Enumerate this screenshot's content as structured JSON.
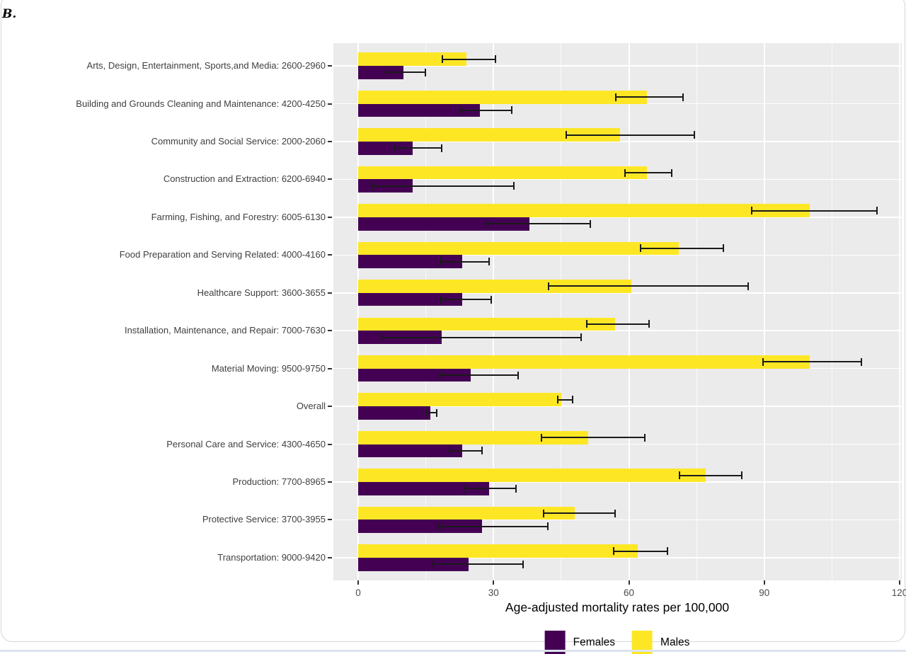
{
  "chart_data": {
    "type": "bar",
    "orientation": "horizontal",
    "title": "B.",
    "xlabel": "Age-adjusted mortality rates per 100,000",
    "x_ticks": [
      0,
      30,
      60,
      90,
      120
    ],
    "x_minor_ticks": [
      15,
      45,
      75,
      105
    ],
    "axis_range": [
      -5.5,
      120.5
    ],
    "panel_bg": "#EBEBEB",
    "grid": "on",
    "error_bar_color": "#1a1a1a",
    "legend_position": "bottom",
    "categories": [
      "Arts, Design, Entertainment, Sports,and Media: 2600-2960",
      "Building and Grounds Cleaning and Maintenance: 4200-4250",
      "Community and Social Service: 2000-2060",
      "Construction and Extraction: 6200-6940",
      "Farming, Fishing, and Forestry: 6005-6130",
      "Food Preparation and Serving Related: 4000-4160",
      "Healthcare Support: 3600-3655",
      "Installation, Maintenance, and Repair: 7000-7630",
      "Material Moving: 9500-9750",
      "Overall",
      "Personal Care and Service: 4300-4650",
      "Production: 7700-8965",
      "Protective Service: 3700-3955",
      "Transportation: 9000-9420"
    ],
    "series": [
      {
        "name": "Males",
        "color": "#FDE725",
        "values": [
          24,
          64,
          58,
          64,
          100,
          71,
          60.5,
          57,
          100,
          45,
          51,
          77,
          48,
          62
        ],
        "ci_low": [
          18.5,
          57,
          46,
          59,
          87,
          62.5,
          42,
          50.5,
          89.5,
          44,
          40.5,
          71,
          41,
          56.5
        ],
        "ci_high": [
          30,
          71.5,
          74,
          69,
          114.5,
          80.5,
          86,
          64,
          111,
          47,
          63,
          84.5,
          56.5,
          68
        ]
      },
      {
        "name": "Females",
        "color": "#440154",
        "values": [
          10,
          27,
          12,
          12,
          38,
          23,
          23,
          18.5,
          25,
          16,
          23,
          29,
          27.5,
          24.5
        ],
        "ci_low": [
          6,
          22.5,
          8,
          3,
          28,
          18,
          18,
          5,
          18,
          15,
          20,
          23.5,
          17.5,
          16.5
        ],
        "ci_high": [
          14.5,
          33.5,
          18,
          34,
          51,
          28.5,
          29,
          49,
          35,
          17,
          27,
          34.5,
          41.5,
          36
        ]
      }
    ],
    "legend": [
      {
        "name": "Females",
        "color": "#440154"
      },
      {
        "name": "Males",
        "color": "#FDE725"
      }
    ]
  }
}
